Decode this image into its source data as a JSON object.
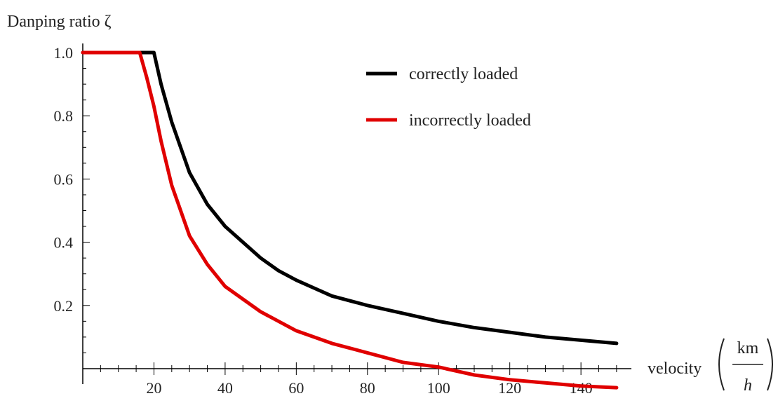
{
  "chart_data": {
    "type": "line",
    "title": "",
    "ylabel": "Danping ratio ζ",
    "xlabel": {
      "text": "velocity",
      "unit_numerator": "km",
      "unit_denominator": "h"
    },
    "xlim": [
      0,
      152
    ],
    "ylim": [
      0,
      1.0
    ],
    "x_ticks": [
      20,
      40,
      60,
      80,
      100,
      120,
      140
    ],
    "y_ticks": [
      0.2,
      0.4,
      0.6,
      0.8,
      1.0
    ],
    "x_tick_labels": [
      "20",
      "40",
      "60",
      "80",
      "100",
      "120",
      "140"
    ],
    "y_tick_labels": [
      "0.2",
      "0.4",
      "0.6",
      "0.8",
      "1.0"
    ],
    "grid": false,
    "legend_position": "top-right",
    "series": [
      {
        "name": "correctly loaded",
        "color": "#000000",
        "points": [
          [
            0,
            1.0
          ],
          [
            20,
            1.0
          ],
          [
            22,
            0.9
          ],
          [
            25,
            0.78
          ],
          [
            30,
            0.62
          ],
          [
            35,
            0.52
          ],
          [
            40,
            0.45
          ],
          [
            45,
            0.4
          ],
          [
            50,
            0.35
          ],
          [
            55,
            0.31
          ],
          [
            60,
            0.28
          ],
          [
            65,
            0.255
          ],
          [
            70,
            0.23
          ],
          [
            80,
            0.2
          ],
          [
            90,
            0.175
          ],
          [
            100,
            0.15
          ],
          [
            110,
            0.13
          ],
          [
            120,
            0.115
          ],
          [
            130,
            0.1
          ],
          [
            140,
            0.09
          ],
          [
            150,
            0.08
          ]
        ]
      },
      {
        "name": "incorrectly loaded",
        "color": "#e00000",
        "points": [
          [
            0,
            1.0
          ],
          [
            16,
            1.0
          ],
          [
            18,
            0.92
          ],
          [
            20,
            0.83
          ],
          [
            22,
            0.72
          ],
          [
            25,
            0.58
          ],
          [
            30,
            0.42
          ],
          [
            35,
            0.33
          ],
          [
            40,
            0.26
          ],
          [
            45,
            0.22
          ],
          [
            50,
            0.18
          ],
          [
            60,
            0.12
          ],
          [
            70,
            0.08
          ],
          [
            80,
            0.05
          ],
          [
            90,
            0.02
          ],
          [
            100,
            0.005
          ],
          [
            110,
            -0.02
          ],
          [
            120,
            -0.035
          ],
          [
            130,
            -0.045
          ],
          [
            140,
            -0.055
          ],
          [
            150,
            -0.06
          ]
        ]
      }
    ]
  }
}
